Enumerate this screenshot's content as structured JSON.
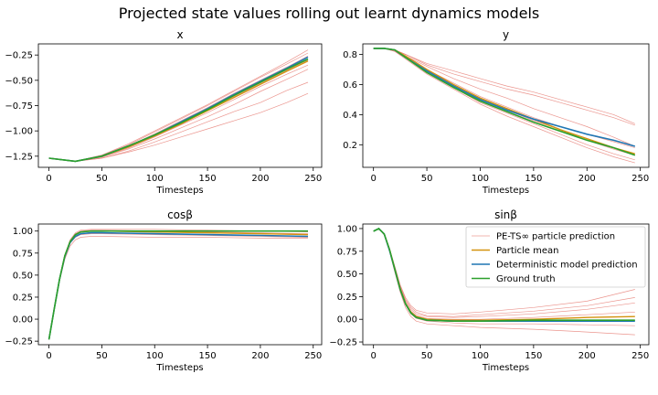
{
  "figure": {
    "title": "Projected state values rolling out learnt dynamics models"
  },
  "colors": {
    "particle": "#e8827a",
    "mean": "#d4920f",
    "model": "#1f77b4",
    "truth": "#2ca02c"
  },
  "legend": {
    "panel": 3,
    "position": "upper-right",
    "entries": [
      {
        "label": "PE-TS∞ particle prediction",
        "role": "particle"
      },
      {
        "label": "Particle mean",
        "role": "mean"
      },
      {
        "label": "Deterministic model prediction",
        "role": "model"
      },
      {
        "label": "Ground truth",
        "role": "truth"
      }
    ]
  },
  "chart_data": [
    {
      "type": "line",
      "title": "x",
      "xlabel": "Timesteps",
      "ylabel": "",
      "xlim": [
        -10,
        258
      ],
      "ylim": [
        -1.36,
        -0.14
      ],
      "xticks": [
        0,
        50,
        100,
        150,
        200,
        250
      ],
      "xtick_labels": [
        "0",
        "50",
        "100",
        "150",
        "200",
        "250"
      ],
      "yticks": [
        -1.25,
        -1.0,
        -0.75,
        -0.5,
        -0.25
      ],
      "ytick_labels": [
        "−1.25",
        "−1.00",
        "−0.75",
        "−0.50",
        "−0.25"
      ],
      "grid": false,
      "x": [
        0,
        25,
        50,
        75,
        100,
        125,
        150,
        175,
        200,
        225,
        245
      ],
      "particles": [
        [
          -1.27,
          -1.3,
          -1.24,
          -1.13,
          -1.0,
          -0.87,
          -0.74,
          -0.6,
          -0.46,
          -0.32,
          -0.2
        ],
        [
          -1.27,
          -1.3,
          -1.24,
          -1.14,
          -1.01,
          -0.88,
          -0.75,
          -0.61,
          -0.47,
          -0.34,
          -0.23
        ],
        [
          -1.27,
          -1.3,
          -1.25,
          -1.15,
          -1.03,
          -0.9,
          -0.77,
          -0.63,
          -0.5,
          -0.37,
          -0.26
        ],
        [
          -1.27,
          -1.3,
          -1.25,
          -1.16,
          -1.04,
          -0.92,
          -0.79,
          -0.66,
          -0.53,
          -0.4,
          -0.3
        ],
        [
          -1.27,
          -1.3,
          -1.26,
          -1.17,
          -1.06,
          -0.94,
          -0.82,
          -0.69,
          -0.56,
          -0.44,
          -0.35
        ],
        [
          -1.27,
          -1.3,
          -1.26,
          -1.18,
          -1.08,
          -0.97,
          -0.86,
          -0.74,
          -0.61,
          -0.49,
          -0.39
        ],
        [
          -1.27,
          -1.3,
          -1.27,
          -1.2,
          -1.11,
          -1.01,
          -0.91,
          -0.81,
          -0.72,
          -0.6,
          -0.52
        ],
        [
          -1.27,
          -1.3,
          -1.27,
          -1.21,
          -1.14,
          -1.06,
          -0.98,
          -0.9,
          -0.82,
          -0.72,
          -0.63
        ]
      ],
      "mean": [
        -1.27,
        -1.3,
        -1.25,
        -1.16,
        -1.05,
        -0.93,
        -0.8,
        -0.67,
        -0.54,
        -0.41,
        -0.31
      ],
      "model": [
        -1.27,
        -1.3,
        -1.25,
        -1.15,
        -1.04,
        -0.91,
        -0.78,
        -0.64,
        -0.51,
        -0.38,
        -0.27
      ],
      "truth": [
        -1.27,
        -1.3,
        -1.25,
        -1.15,
        -1.04,
        -0.92,
        -0.79,
        -0.65,
        -0.52,
        -0.39,
        -0.29
      ]
    },
    {
      "type": "line",
      "title": "y",
      "xlabel": "Timesteps",
      "ylabel": "",
      "xlim": [
        -10,
        258
      ],
      "ylim": [
        0.05,
        0.87
      ],
      "xticks": [
        0,
        50,
        100,
        150,
        200,
        250
      ],
      "xtick_labels": [
        "0",
        "50",
        "100",
        "150",
        "200",
        "250"
      ],
      "yticks": [
        0.2,
        0.4,
        0.6,
        0.8
      ],
      "ytick_labels": [
        "0.2",
        "0.4",
        "0.6",
        "0.8"
      ],
      "grid": false,
      "x": [
        0,
        10,
        20,
        30,
        50,
        75,
        100,
        125,
        150,
        175,
        200,
        225,
        245
      ],
      "particles": [
        [
          0.84,
          0.84,
          0.83,
          0.8,
          0.74,
          0.69,
          0.64,
          0.59,
          0.55,
          0.5,
          0.45,
          0.4,
          0.34
        ],
        [
          0.84,
          0.84,
          0.83,
          0.8,
          0.73,
          0.67,
          0.62,
          0.57,
          0.53,
          0.48,
          0.43,
          0.38,
          0.33
        ],
        [
          0.84,
          0.84,
          0.83,
          0.79,
          0.72,
          0.64,
          0.57,
          0.51,
          0.44,
          0.38,
          0.32,
          0.25,
          0.19
        ],
        [
          0.84,
          0.84,
          0.83,
          0.79,
          0.7,
          0.61,
          0.52,
          0.45,
          0.38,
          0.32,
          0.27,
          0.22,
          0.18
        ],
        [
          0.84,
          0.84,
          0.82,
          0.78,
          0.68,
          0.58,
          0.48,
          0.41,
          0.34,
          0.27,
          0.2,
          0.14,
          0.1
        ],
        [
          0.84,
          0.84,
          0.82,
          0.77,
          0.67,
          0.57,
          0.47,
          0.39,
          0.32,
          0.25,
          0.18,
          0.12,
          0.08
        ],
        [
          0.84,
          0.84,
          0.82,
          0.78,
          0.69,
          0.59,
          0.5,
          0.43,
          0.36,
          0.3,
          0.23,
          0.17,
          0.13
        ]
      ],
      "mean": [
        0.84,
        0.84,
        0.83,
        0.79,
        0.7,
        0.6,
        0.51,
        0.44,
        0.37,
        0.3,
        0.24,
        0.18,
        0.14
      ],
      "model": [
        0.84,
        0.84,
        0.83,
        0.78,
        0.69,
        0.59,
        0.5,
        0.43,
        0.37,
        0.32,
        0.27,
        0.23,
        0.19
      ],
      "truth": [
        0.84,
        0.84,
        0.83,
        0.78,
        0.68,
        0.58,
        0.49,
        0.42,
        0.35,
        0.29,
        0.23,
        0.18,
        0.13
      ]
    },
    {
      "type": "line",
      "title": "cosβ",
      "xlabel": "Timesteps",
      "ylabel": "",
      "xlim": [
        -10,
        258
      ],
      "ylim": [
        -0.29,
        1.08
      ],
      "xticks": [
        0,
        50,
        100,
        150,
        200,
        250
      ],
      "xtick_labels": [
        "0",
        "50",
        "100",
        "150",
        "200",
        "250"
      ],
      "yticks": [
        -0.25,
        0.0,
        0.25,
        0.5,
        0.75,
        1.0
      ],
      "ytick_labels": [
        "−0.25",
        "0.00",
        "0.25",
        "0.50",
        "0.75",
        "1.00"
      ],
      "grid": false,
      "x": [
        0,
        5,
        10,
        15,
        20,
        25,
        30,
        40,
        50,
        100,
        150,
        200,
        245
      ],
      "particles": [
        [
          -0.23,
          0.12,
          0.45,
          0.72,
          0.9,
          0.98,
          1.01,
          1.02,
          1.02,
          1.02,
          1.01,
          1.0,
          0.99
        ],
        [
          -0.23,
          0.12,
          0.45,
          0.72,
          0.89,
          0.97,
          1.0,
          1.01,
          1.01,
          1.0,
          0.99,
          0.98,
          0.97
        ],
        [
          -0.23,
          0.12,
          0.45,
          0.71,
          0.88,
          0.96,
          0.99,
          1.0,
          1.0,
          0.99,
          0.98,
          0.97,
          0.96
        ],
        [
          -0.23,
          0.12,
          0.44,
          0.7,
          0.86,
          0.93,
          0.96,
          0.97,
          0.97,
          0.96,
          0.95,
          0.94,
          0.93
        ],
        [
          -0.23,
          0.11,
          0.43,
          0.68,
          0.83,
          0.9,
          0.93,
          0.94,
          0.94,
          0.93,
          0.93,
          0.92,
          0.92
        ]
      ],
      "mean": [
        -0.23,
        0.12,
        0.45,
        0.72,
        0.88,
        0.96,
        0.99,
        1.0,
        1.0,
        0.99,
        0.98,
        0.97,
        0.96
      ],
      "model": [
        -0.23,
        0.12,
        0.45,
        0.71,
        0.87,
        0.94,
        0.97,
        0.98,
        0.98,
        0.97,
        0.96,
        0.95,
        0.94
      ],
      "truth": [
        -0.23,
        0.12,
        0.45,
        0.72,
        0.88,
        0.96,
        0.99,
        1.0,
        1.0,
        1.0,
        1.0,
        1.0,
        1.0
      ]
    },
    {
      "type": "line",
      "title": "sinβ",
      "xlabel": "Timesteps",
      "ylabel": "",
      "xlim": [
        -10,
        258
      ],
      "ylim": [
        -0.28,
        1.05
      ],
      "xticks": [
        0,
        50,
        100,
        150,
        200,
        250
      ],
      "xtick_labels": [
        "0",
        "50",
        "100",
        "150",
        "200",
        "250"
      ],
      "yticks": [
        -0.25,
        0.0,
        0.25,
        0.5,
        0.75,
        1.0
      ],
      "ytick_labels": [
        "−0.25",
        "0.00",
        "0.25",
        "0.50",
        "0.75",
        "1.00"
      ],
      "grid": false,
      "x": [
        0,
        5,
        10,
        15,
        20,
        25,
        30,
        35,
        40,
        50,
        75,
        100,
        150,
        200,
        245
      ],
      "particles": [
        [
          0.97,
          1.0,
          0.94,
          0.78,
          0.58,
          0.38,
          0.24,
          0.15,
          0.1,
          0.07,
          0.06,
          0.08,
          0.13,
          0.2,
          0.33
        ],
        [
          0.97,
          1.0,
          0.94,
          0.78,
          0.58,
          0.37,
          0.22,
          0.13,
          0.08,
          0.04,
          0.03,
          0.05,
          0.09,
          0.15,
          0.24
        ],
        [
          0.97,
          1.0,
          0.94,
          0.78,
          0.57,
          0.36,
          0.21,
          0.11,
          0.06,
          0.03,
          0.02,
          0.03,
          0.06,
          0.11,
          0.18
        ],
        [
          0.97,
          1.0,
          0.94,
          0.77,
          0.56,
          0.34,
          0.19,
          0.09,
          0.04,
          0.01,
          0.0,
          0.0,
          0.02,
          0.05,
          0.08
        ],
        [
          0.97,
          1.0,
          0.93,
          0.76,
          0.54,
          0.32,
          0.16,
          0.06,
          0.01,
          -0.02,
          -0.04,
          -0.05,
          -0.05,
          -0.06,
          -0.07
        ],
        [
          0.97,
          1.0,
          0.93,
          0.75,
          0.52,
          0.3,
          0.13,
          0.03,
          -0.02,
          -0.05,
          -0.07,
          -0.09,
          -0.11,
          -0.14,
          -0.17
        ]
      ],
      "mean": [
        0.97,
        1.0,
        0.94,
        0.77,
        0.56,
        0.34,
        0.18,
        0.08,
        0.03,
        0.0,
        -0.01,
        -0.01,
        0.0,
        0.02,
        0.03
      ],
      "model": [
        0.97,
        1.0,
        0.94,
        0.76,
        0.55,
        0.33,
        0.17,
        0.07,
        0.02,
        -0.01,
        -0.02,
        -0.02,
        -0.02,
        -0.02,
        -0.02
      ],
      "truth": [
        0.97,
        1.0,
        0.94,
        0.77,
        0.55,
        0.33,
        0.17,
        0.07,
        0.02,
        -0.01,
        -0.02,
        -0.02,
        -0.01,
        -0.01,
        -0.01
      ]
    }
  ]
}
